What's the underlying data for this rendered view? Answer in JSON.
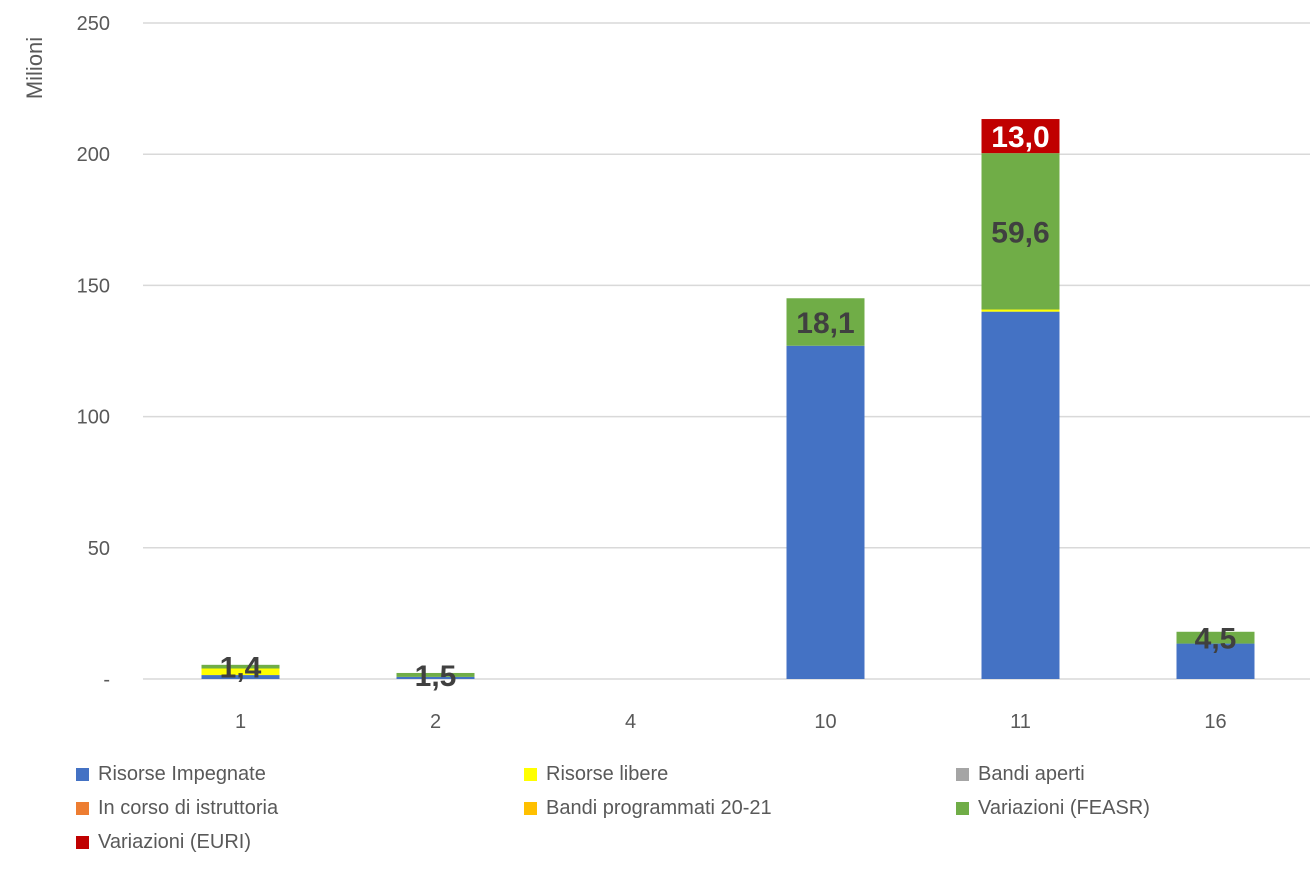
{
  "chart_data": {
    "type": "bar",
    "stacked": true,
    "ylabel": "Milioni",
    "ylim": [
      0,
      250
    ],
    "yticks": [
      {
        "value": 0,
        "label": "-"
      },
      {
        "value": 50,
        "label": "50"
      },
      {
        "value": 100,
        "label": "100"
      },
      {
        "value": 150,
        "label": "150"
      },
      {
        "value": 200,
        "label": "200"
      },
      {
        "value": 250,
        "label": "250"
      }
    ],
    "grid": true,
    "legend_position": "bottom",
    "categories": [
      "1",
      "2",
      "4",
      "10",
      "11",
      "16"
    ],
    "series": [
      {
        "name": "Risorse Impegnate",
        "color": "#4472C4",
        "values": [
          1.5,
          0.8,
          0,
          127,
          140,
          13.5
        ]
      },
      {
        "name": "Risorse libere",
        "color": "#FFFF00",
        "values": [
          2.5,
          0,
          0,
          0,
          0.8,
          0
        ]
      },
      {
        "name": "Bandi aperti",
        "color": "#A5A5A5",
        "values": [
          0,
          0,
          0,
          0,
          0,
          0
        ]
      },
      {
        "name": "In corso di istruttoria",
        "color": "#ED7D31",
        "values": [
          0,
          0,
          0,
          0,
          0,
          0
        ]
      },
      {
        "name": "Bandi programmati 20-21",
        "color": "#FFC000",
        "values": [
          0,
          0,
          0,
          0,
          0,
          0
        ]
      },
      {
        "name": "Variazioni  (FEASR)",
        "color": "#70AD47",
        "values": [
          1.4,
          1.5,
          0,
          18.1,
          59.6,
          4.5
        ]
      },
      {
        "name": "Variazioni (EURI)",
        "color": "#C00000",
        "values": [
          0,
          0,
          0,
          0,
          13.0,
          0
        ]
      }
    ],
    "data_labels": [
      {
        "category": "1",
        "series": "Variazioni  (FEASR)",
        "text": "1,4"
      },
      {
        "category": "2",
        "series": "Variazioni  (FEASR)",
        "text": "1,5"
      },
      {
        "category": "10",
        "series": "Variazioni  (FEASR)",
        "text": "18,1"
      },
      {
        "category": "11",
        "series": "Variazioni  (FEASR)",
        "text": "59,6"
      },
      {
        "category": "11",
        "series": "Variazioni (EURI)",
        "text": "13,0"
      },
      {
        "category": "16",
        "series": "Variazioni  (FEASR)",
        "text": "4,5"
      }
    ]
  }
}
